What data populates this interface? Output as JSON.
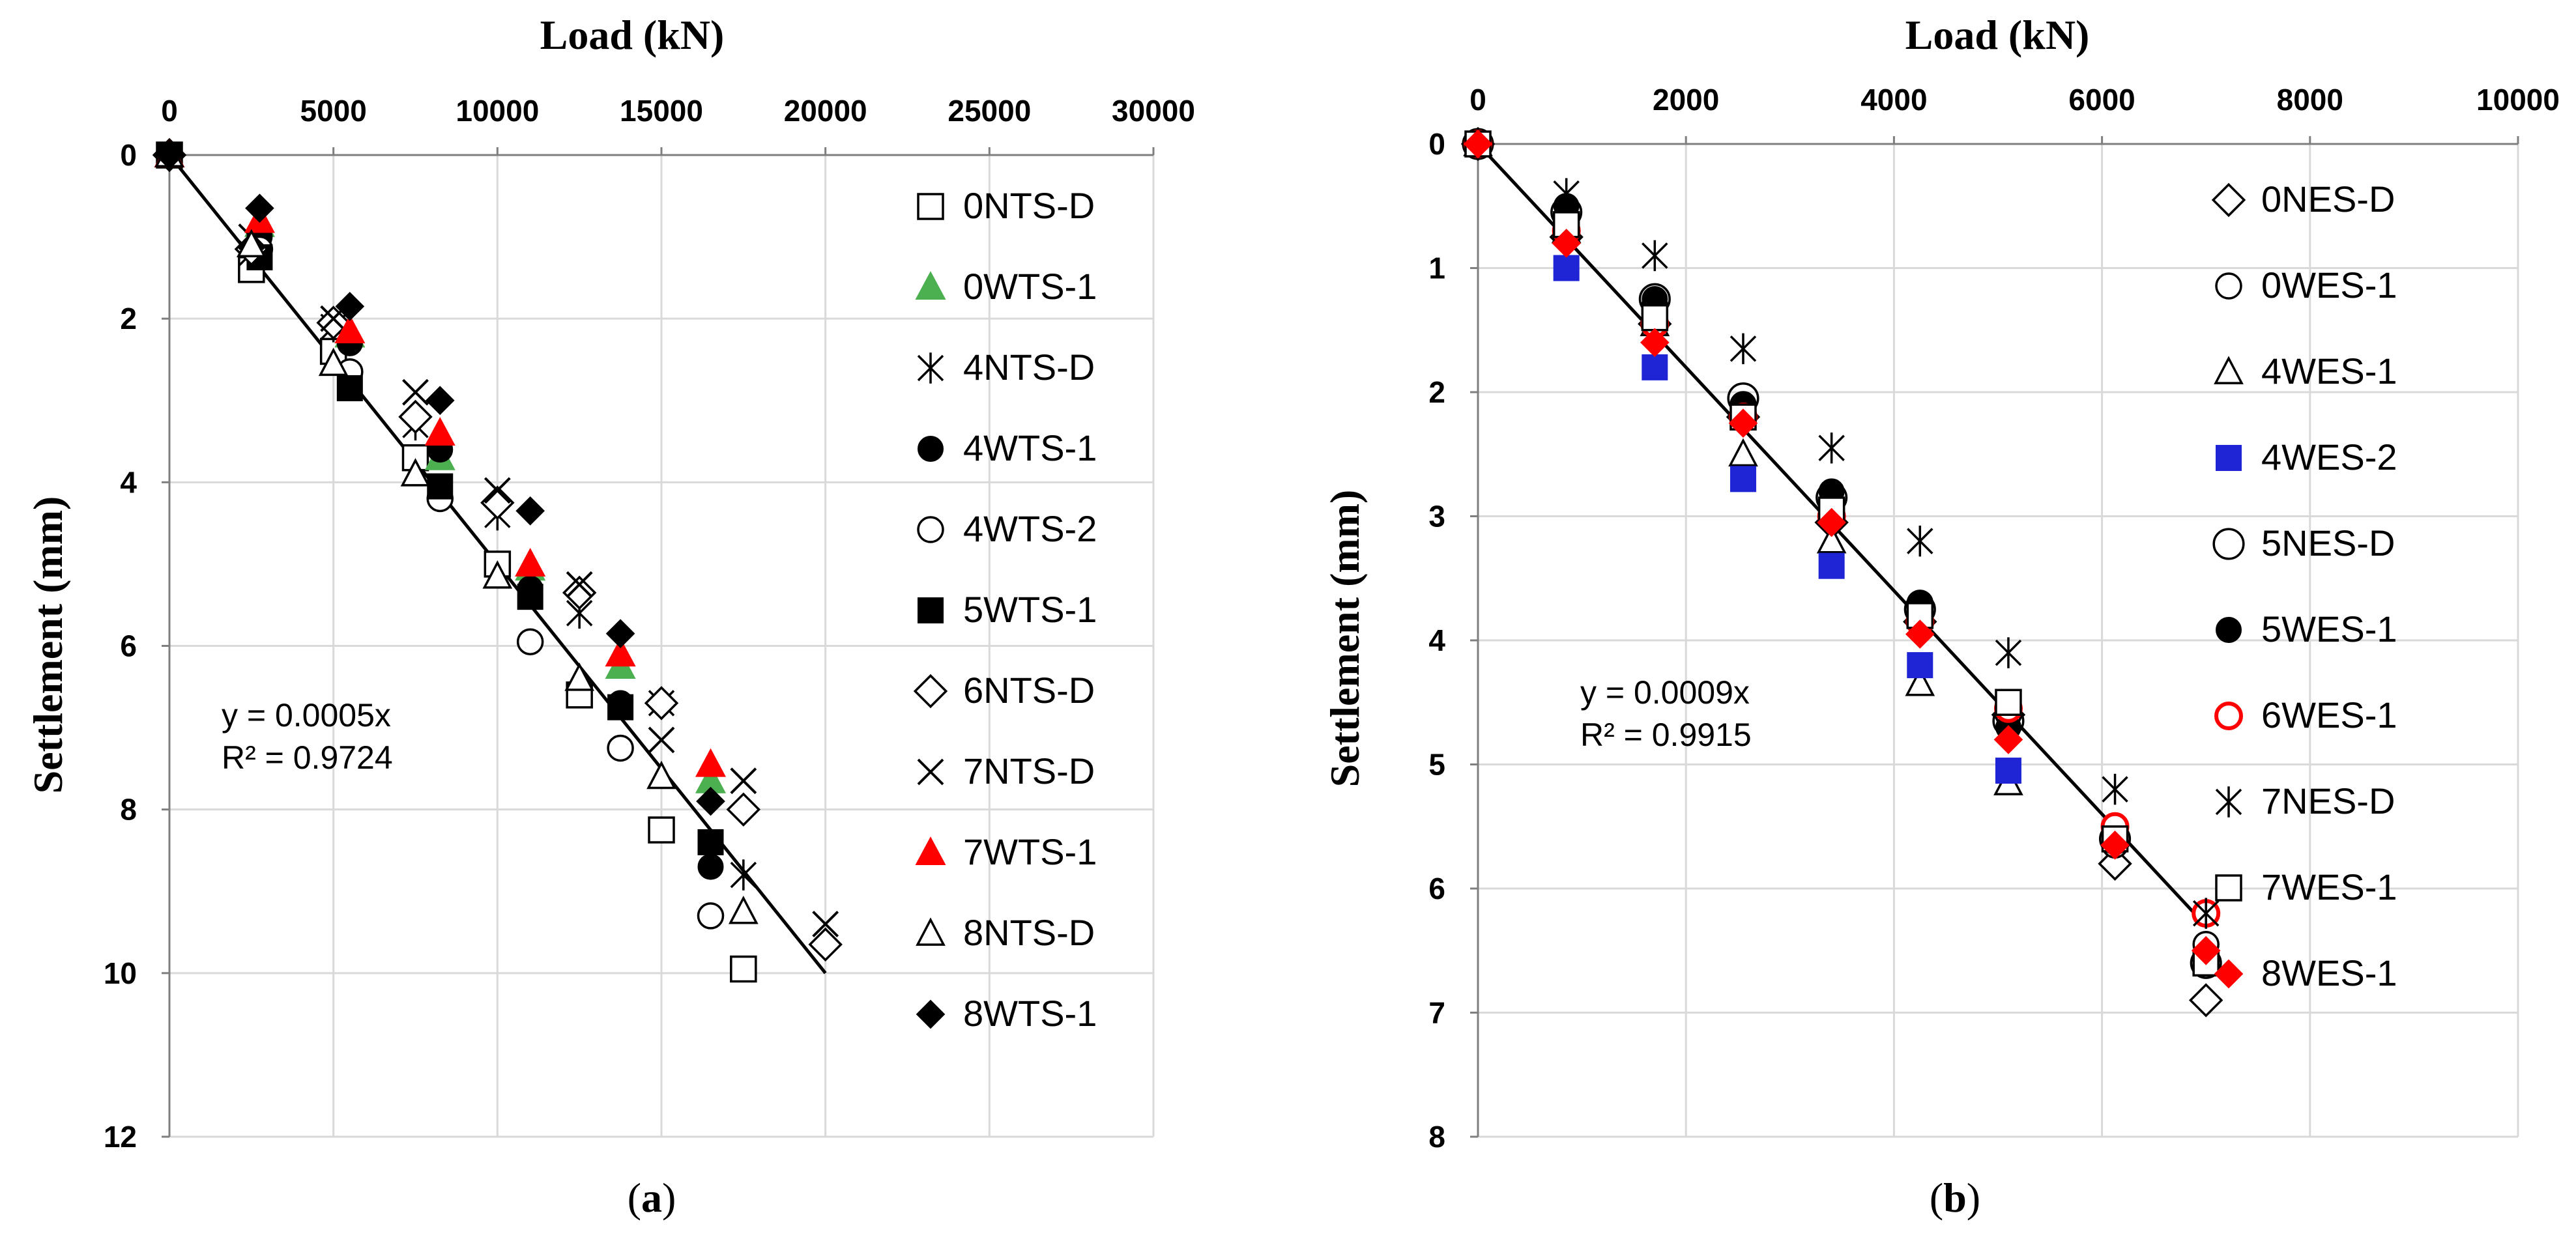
{
  "chart_data": [
    {
      "type": "scatter",
      "panel_label": "a",
      "title": "Load (kN)",
      "xlabel": "Load (kN)",
      "ylabel": "Settlement (mm)",
      "xlim": [
        0,
        30000
      ],
      "ylim": [
        0,
        12
      ],
      "xticks": [
        0,
        5000,
        10000,
        15000,
        20000,
        25000,
        30000
      ],
      "yticks": [
        0,
        2,
        4,
        6,
        8,
        10,
        12
      ],
      "x_axis_position": "top",
      "y_axis_inverted": true,
      "grid": true,
      "legend_position": "right",
      "trendline": {
        "slope": 0.0005,
        "x_start": 0,
        "x_end": 20000,
        "equation": "y = 0.0005x",
        "r2": "R² = 0.9724"
      },
      "series": [
        {
          "name": "0NTS-D",
          "marker": "square-open",
          "color": "#000000",
          "points": [
            [
              0,
              0
            ],
            [
              2500,
              1.4
            ],
            [
              5000,
              2.4
            ],
            [
              7500,
              3.7
            ],
            [
              10000,
              5.0
            ],
            [
              12500,
              6.6
            ],
            [
              15000,
              8.25
            ],
            [
              17500,
              9.95
            ]
          ]
        },
        {
          "name": "0WTS-1",
          "marker": "triangle-filled",
          "color": "#4caf50",
          "points": [
            [
              0,
              0
            ],
            [
              2750,
              0.85
            ],
            [
              5500,
              2.2
            ],
            [
              8250,
              3.7
            ],
            [
              11000,
              5.05
            ],
            [
              13750,
              6.25
            ],
            [
              16500,
              7.65
            ]
          ]
        },
        {
          "name": "4NTS-D",
          "marker": "asterisk",
          "color": "#000000",
          "points": [
            [
              0,
              0
            ],
            [
              2500,
              1.2
            ],
            [
              5000,
              2.1
            ],
            [
              7500,
              3.3
            ],
            [
              10000,
              4.4
            ],
            [
              12500,
              5.6
            ],
            [
              15000,
              6.7
            ],
            [
              17500,
              8.8
            ]
          ]
        },
        {
          "name": "4WTS-1",
          "marker": "circle-filled",
          "color": "#000000",
          "points": [
            [
              0,
              0
            ],
            [
              2750,
              1.0
            ],
            [
              5500,
              2.3
            ],
            [
              8250,
              3.6
            ],
            [
              11000,
              5.3
            ],
            [
              13750,
              6.7
            ],
            [
              16500,
              8.7
            ]
          ]
        },
        {
          "name": "4WTS-2",
          "marker": "circle-open",
          "color": "#000000",
          "points": [
            [
              0,
              0
            ],
            [
              2750,
              1.15
            ],
            [
              5500,
              2.65
            ],
            [
              8250,
              4.2
            ],
            [
              11000,
              5.95
            ],
            [
              13750,
              7.25
            ],
            [
              16500,
              9.3
            ]
          ]
        },
        {
          "name": "5WTS-1",
          "marker": "square-filled",
          "color": "#000000",
          "points": [
            [
              0,
              0
            ],
            [
              2750,
              1.25
            ],
            [
              5500,
              2.85
            ],
            [
              8250,
              4.05
            ],
            [
              11000,
              5.4
            ],
            [
              13750,
              6.75
            ],
            [
              16500,
              8.4
            ]
          ]
        },
        {
          "name": "6NTS-D",
          "marker": "diamond-open",
          "color": "#000000",
          "points": [
            [
              0,
              0
            ],
            [
              2500,
              1.15
            ],
            [
              5000,
              2.05
            ],
            [
              7500,
              3.2
            ],
            [
              10000,
              4.25
            ],
            [
              12500,
              5.35
            ],
            [
              15000,
              6.7
            ],
            [
              17500,
              8.0
            ],
            [
              20000,
              9.65
            ]
          ]
        },
        {
          "name": "7NTS-D",
          "marker": "x-cross",
          "color": "#000000",
          "points": [
            [
              0,
              0
            ],
            [
              2500,
              1.0
            ],
            [
              5000,
              2.0
            ],
            [
              7500,
              2.9
            ],
            [
              10000,
              4.1
            ],
            [
              12500,
              5.25
            ],
            [
              15000,
              7.15
            ],
            [
              17500,
              7.65
            ],
            [
              20000,
              9.4
            ]
          ]
        },
        {
          "name": "7WTS-1",
          "marker": "triangle-filled",
          "color": "#ff0000",
          "points": [
            [
              0,
              0
            ],
            [
              2750,
              0.8
            ],
            [
              5500,
              2.15
            ],
            [
              8250,
              3.4
            ],
            [
              11000,
              5.0
            ],
            [
              13750,
              6.1
            ],
            [
              16500,
              7.45
            ]
          ]
        },
        {
          "name": "8NTS-D",
          "marker": "triangle-open",
          "color": "#000000",
          "points": [
            [
              0,
              0
            ],
            [
              2500,
              1.1
            ],
            [
              5000,
              2.55
            ],
            [
              7500,
              3.9
            ],
            [
              10000,
              5.15
            ],
            [
              12500,
              6.4
            ],
            [
              15000,
              7.6
            ],
            [
              17500,
              9.25
            ]
          ]
        },
        {
          "name": "8WTS-1",
          "marker": "diamond-filled",
          "color": "#000000",
          "points": [
            [
              0,
              0
            ],
            [
              2750,
              0.65
            ],
            [
              5500,
              1.85
            ],
            [
              8250,
              3.0
            ],
            [
              11000,
              4.35
            ],
            [
              13750,
              5.85
            ],
            [
              16500,
              7.9
            ]
          ]
        }
      ]
    },
    {
      "type": "scatter",
      "panel_label": "b",
      "title": "Load (kN)",
      "xlabel": "Load (kN)",
      "ylabel": "Settlement (mm)",
      "xlim": [
        0,
        10000
      ],
      "ylim": [
        0,
        8
      ],
      "xticks": [
        0,
        2000,
        4000,
        6000,
        8000,
        10000
      ],
      "yticks": [
        0,
        1,
        2,
        3,
        4,
        5,
        6,
        7,
        8
      ],
      "x_axis_position": "top",
      "y_axis_inverted": true,
      "grid": true,
      "legend_position": "right",
      "trendline": {
        "slope": 0.0009,
        "x_start": 0,
        "x_end": 7000,
        "equation": "y = 0.0009x",
        "r2": "R² = 0.9915"
      },
      "series": [
        {
          "name": "0NES-D",
          "marker": "diamond-open",
          "color": "#000000",
          "points": [
            [
              0,
              0
            ],
            [
              850,
              0.75
            ],
            [
              1700,
              1.45
            ],
            [
              2550,
              2.2
            ],
            [
              3400,
              3.05
            ],
            [
              4250,
              3.85
            ],
            [
              5100,
              4.6
            ],
            [
              6125,
              5.8
            ],
            [
              7000,
              6.9
            ]
          ]
        },
        {
          "name": "0WES-1",
          "marker": "circle-open",
          "color": "#000000",
          "points": [
            [
              0,
              0
            ],
            [
              850,
              0.6
            ],
            [
              1700,
              1.3
            ],
            [
              2550,
              2.1
            ],
            [
              3400,
              2.9
            ],
            [
              4250,
              3.7
            ],
            [
              5100,
              4.6
            ],
            [
              6125,
              5.65
            ],
            [
              7000,
              6.45
            ]
          ]
        },
        {
          "name": "4WES-1",
          "marker": "triangle-open",
          "color": "#000000",
          "points": [
            [
              0,
              0
            ],
            [
              850,
              0.7
            ],
            [
              1700,
              1.45
            ],
            [
              2550,
              2.5
            ],
            [
              3400,
              3.2
            ],
            [
              4250,
              4.35
            ],
            [
              5100,
              5.15
            ],
            [
              6125,
              5.55
            ],
            [
              7000,
              6.55
            ]
          ]
        },
        {
          "name": "4WES-2",
          "marker": "square-filled",
          "color": "#1f24d4",
          "points": [
            [
              0,
              0
            ],
            [
              850,
              1.0
            ],
            [
              1700,
              1.8
            ],
            [
              2550,
              2.7
            ],
            [
              3400,
              3.4
            ],
            [
              4250,
              4.2
            ],
            [
              5100,
              5.05
            ]
          ]
        },
        {
          "name": "5NES-D",
          "marker": "circle-open-large",
          "color": "#000000",
          "points": [
            [
              0,
              0
            ],
            [
              850,
              0.55
            ],
            [
              1700,
              1.25
            ],
            [
              2550,
              2.05
            ],
            [
              3400,
              2.85
            ],
            [
              4250,
              3.75
            ],
            [
              5100,
              4.65
            ],
            [
              6125,
              5.6
            ],
            [
              7000,
              6.6
            ]
          ]
        },
        {
          "name": "5WES-1",
          "marker": "circle-filled",
          "color": "#000000",
          "points": [
            [
              0,
              0
            ],
            [
              850,
              0.5
            ],
            [
              1700,
              1.25
            ],
            [
              2550,
              2.1
            ],
            [
              3400,
              2.8
            ],
            [
              4250,
              3.7
            ],
            [
              5100,
              4.7
            ],
            [
              6125,
              5.6
            ],
            [
              7000,
              6.2
            ]
          ]
        },
        {
          "name": "6WES-1",
          "marker": "circle-open-red",
          "color": "#ff0000",
          "points": [
            [
              0,
              0
            ],
            [
              850,
              0.7
            ],
            [
              1700,
              1.45
            ],
            [
              2550,
              2.2
            ],
            [
              3400,
              3.0
            ],
            [
              4250,
              3.85
            ],
            [
              5100,
              4.55
            ],
            [
              6125,
              5.5
            ],
            [
              7000,
              6.2
            ]
          ]
        },
        {
          "name": "7NES-D",
          "marker": "asterisk",
          "color": "#000000",
          "points": [
            [
              0,
              0
            ],
            [
              850,
              0.4
            ],
            [
              1700,
              0.9
            ],
            [
              2550,
              1.65
            ],
            [
              3400,
              2.45
            ],
            [
              4250,
              3.2
            ],
            [
              5100,
              4.1
            ],
            [
              6125,
              5.2
            ],
            [
              7000,
              6.2
            ]
          ]
        },
        {
          "name": "7WES-1",
          "marker": "square-open",
          "color": "#000000",
          "points": [
            [
              0,
              0
            ],
            [
              850,
              0.65
            ],
            [
              1700,
              1.4
            ],
            [
              2550,
              2.2
            ],
            [
              3400,
              2.95
            ],
            [
              4250,
              3.8
            ],
            [
              5100,
              4.5
            ],
            [
              6125,
              5.6
            ],
            [
              7000,
              6.6
            ]
          ]
        },
        {
          "name": "8WES-1",
          "marker": "diamond-filled",
          "color": "#ff0000",
          "points": [
            [
              0,
              0
            ],
            [
              850,
              0.8
            ],
            [
              1700,
              1.6
            ],
            [
              2550,
              2.25
            ],
            [
              3400,
              3.05
            ],
            [
              4250,
              3.95
            ],
            [
              5100,
              4.8
            ],
            [
              6125,
              5.65
            ],
            [
              7000,
              6.5
            ]
          ]
        }
      ]
    }
  ]
}
